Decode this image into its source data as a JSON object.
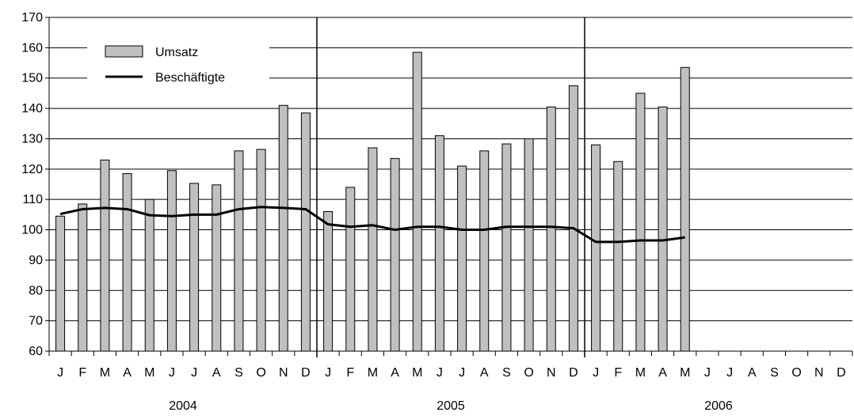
{
  "chart_data": {
    "type": "bar",
    "title": "",
    "xlabel": "",
    "ylabel": "",
    "ylim": [
      60,
      170
    ],
    "y_ticks": [
      60,
      70,
      80,
      90,
      100,
      110,
      120,
      130,
      140,
      150,
      160,
      170
    ],
    "grid": true,
    "legend_position": "top-left",
    "categories": [
      "J",
      "F",
      "M",
      "A",
      "M",
      "J",
      "J",
      "A",
      "S",
      "O",
      "N",
      "D",
      "J",
      "F",
      "M",
      "A",
      "M",
      "J",
      "J",
      "A",
      "S",
      "O",
      "N",
      "D",
      "J",
      "F",
      "M",
      "A",
      "M",
      "J",
      "J",
      "A",
      "S",
      "O",
      "N",
      "D"
    ],
    "year_groups": [
      {
        "label": "2004",
        "start": 0,
        "count": 12
      },
      {
        "label": "2005",
        "start": 12,
        "count": 12
      },
      {
        "label": "2006",
        "start": 24,
        "count": 12
      }
    ],
    "series": [
      {
        "name": "Umsatz",
        "kind": "bar",
        "color": "#c0c0c0",
        "values": [
          104.5,
          108.5,
          123,
          118.5,
          110,
          119.5,
          115.3,
          114.8,
          126,
          126.5,
          141,
          138.5,
          106,
          114,
          127,
          123.5,
          158.5,
          131,
          121,
          126,
          128.3,
          130,
          140.5,
          147.5,
          128,
          122.5,
          145,
          140.5,
          153.5,
          null,
          null,
          null,
          null,
          null,
          null,
          null
        ]
      },
      {
        "name": "Beschäftigte",
        "kind": "line",
        "color": "#000000",
        "values": [
          105.2,
          106.8,
          107.2,
          106.8,
          104.8,
          104.5,
          105,
          105,
          106.8,
          107.5,
          107.2,
          106.8,
          101.8,
          101,
          101.5,
          100,
          101,
          101,
          100,
          100,
          101,
          101,
          101,
          100.5,
          96,
          96,
          96.5,
          96.5,
          97.5,
          null,
          null,
          null,
          null,
          null,
          null,
          null
        ]
      }
    ]
  }
}
